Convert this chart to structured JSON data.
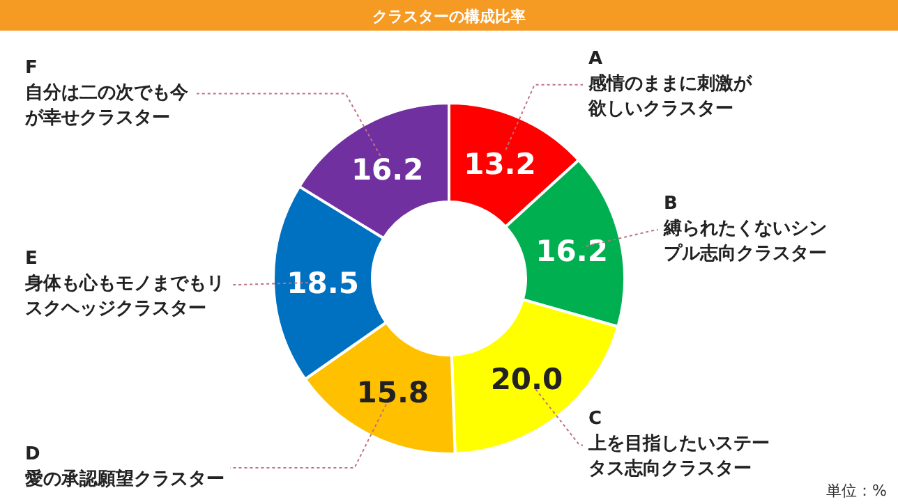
{
  "chart_data": {
    "type": "donut",
    "title": "クラスターの構成比率",
    "categories": [
      "A\n感情のままに刺激が欲しいクラスター",
      "B\n縛られたくないシンプル志向クラスター",
      "C\n上を目指したいステータス志向クラスター",
      "D\n愛の承認願望クラスター",
      "E\n身体も心もモノまでもリスクヘッジクラスター",
      "F\n自分は二の次でも今が幸せクラスター"
    ],
    "values": [
      13.2,
      16.2,
      20.0,
      15.8,
      18.5,
      16.2
    ],
    "value_labels": [
      "13.2",
      "16.2",
      "20.0",
      "15.8",
      "18.5",
      "16.2"
    ],
    "colors": [
      "#ff0000",
      "#00b050",
      "#ffff00",
      "#ffc000",
      "#0070c0",
      "#7030a0"
    ],
    "annotations": [
      "単位：%"
    ]
  }
}
